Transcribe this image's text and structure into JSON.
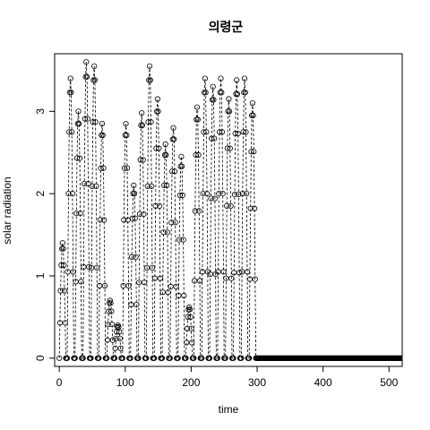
{
  "chart_data": {
    "type": "line",
    "title": "의령군",
    "xlabel": "time",
    "ylabel": "solar radiation",
    "xlim": [
      -7,
      520
    ],
    "ylim": [
      -0.1,
      3.7
    ],
    "x_ticks": [
      0,
      100,
      200,
      300,
      400,
      500
    ],
    "y_ticks": [
      0,
      1,
      2,
      3
    ],
    "x_tick_labels": [
      "0",
      "100",
      "200",
      "300",
      "400",
      "500"
    ],
    "y_tick_labels": [
      "0",
      "1",
      "2",
      "3"
    ],
    "grid": false,
    "line_style": "dashed",
    "point_marker": "open-circle",
    "color": "#000000",
    "day_length": 12,
    "daylight_hours": 9,
    "daily_peaks": [
      1.4,
      3.4,
      3.0,
      3.6,
      3.55,
      2.85,
      0.7,
      0.4,
      2.85,
      2.1,
      2.98,
      3.55,
      3.15,
      2.6,
      2.8,
      2.45,
      0.62,
      3.05,
      3.4,
      3.3,
      3.4,
      3.15,
      3.38,
      3.4,
      3.1
    ],
    "series": [
      {
        "values": []
      }
    ]
  }
}
